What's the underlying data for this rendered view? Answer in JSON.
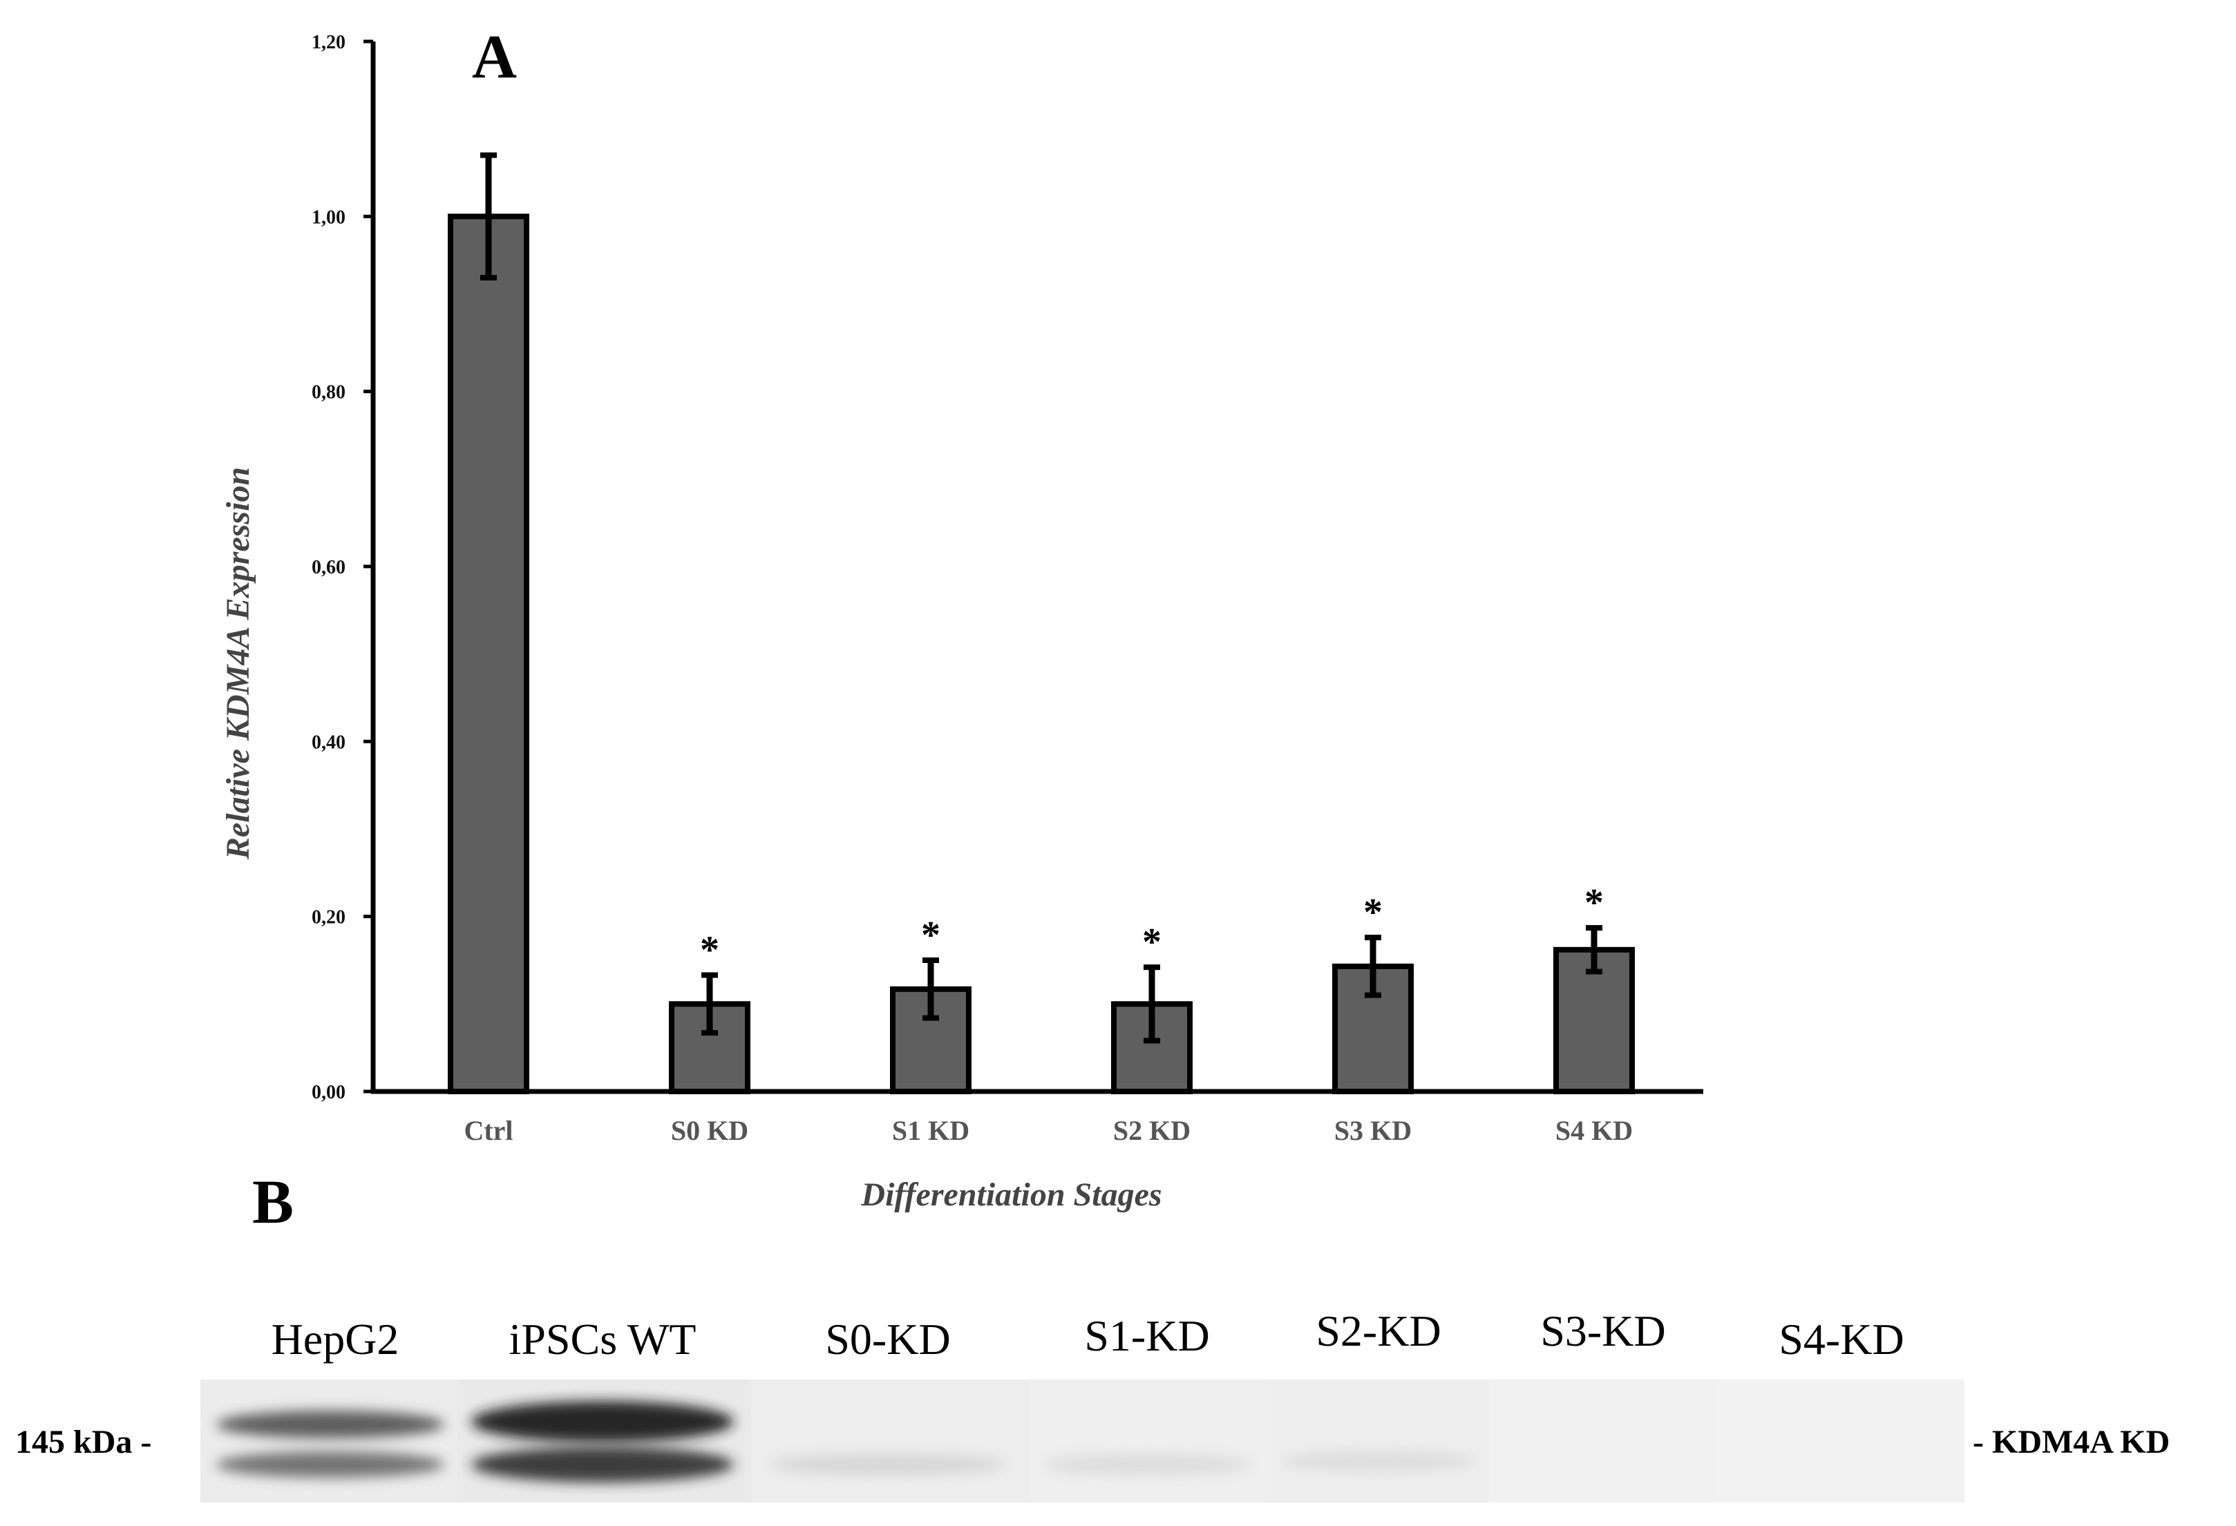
{
  "chart_data": [
    {
      "type": "bar",
      "panel_label": "A",
      "categories": [
        "Ctrl",
        "S0 KD",
        "S1 KD",
        "S2 KD",
        "S3 KD",
        "S4 KD"
      ],
      "values": [
        1.0,
        0.1,
        0.117,
        0.1,
        0.143,
        0.162
      ],
      "error": [
        0.07,
        0.033,
        0.033,
        0.042,
        0.033,
        0.025
      ],
      "significance": [
        "",
        "*",
        "*",
        "*",
        "*",
        "*"
      ],
      "xlabel": "Differentiation Stages",
      "ylabel": "Relative KDM4A Expression",
      "ylim": [
        0,
        1.2
      ],
      "ytick_values": [
        0,
        0.2,
        0.4,
        0.6,
        0.8,
        1.0,
        1.2
      ],
      "ytick_labels": [
        "0,00",
        "0,20",
        "0,40",
        "0,60",
        "0,80",
        "1,00",
        "1,20"
      ],
      "bar_color": "#5f5f5f",
      "grid": false,
      "legend": "none"
    }
  ],
  "western_blot": {
    "panel_label": "B",
    "lanes": [
      "HepG2",
      "iPSCs WT",
      "S0-KD",
      "S1-KD",
      "S2-KD",
      "S3-KD",
      "S4-KD"
    ],
    "marker_label": "145 kDa -",
    "band_label": "- KDM4A KD"
  }
}
